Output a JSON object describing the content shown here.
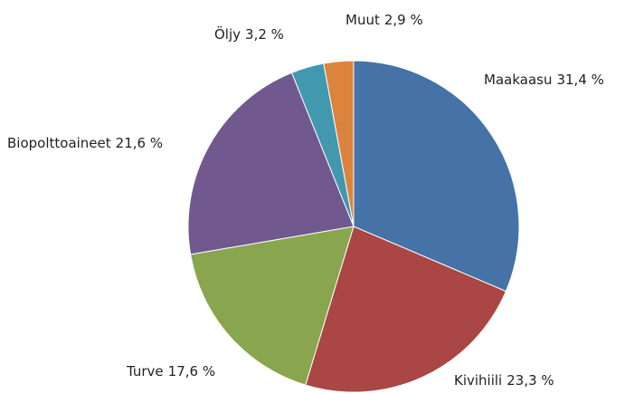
{
  "chart_data": {
    "type": "pie",
    "categories": [
      "Maakaasu",
      "Kivihiili",
      "Turve",
      "Biopolttoaineet",
      "Öljy",
      "Muut"
    ],
    "values": [
      31.4,
      23.3,
      17.6,
      21.6,
      3.2,
      2.9
    ],
    "value_labels": [
      "31,4 %",
      "23,3 %",
      "17,6 %",
      "21,6 %",
      "3,2 %",
      "2,9 %"
    ],
    "colors": [
      "#4572a7",
      "#aa4643",
      "#89a54e",
      "#71588f",
      "#4198af",
      "#db843d"
    ]
  }
}
